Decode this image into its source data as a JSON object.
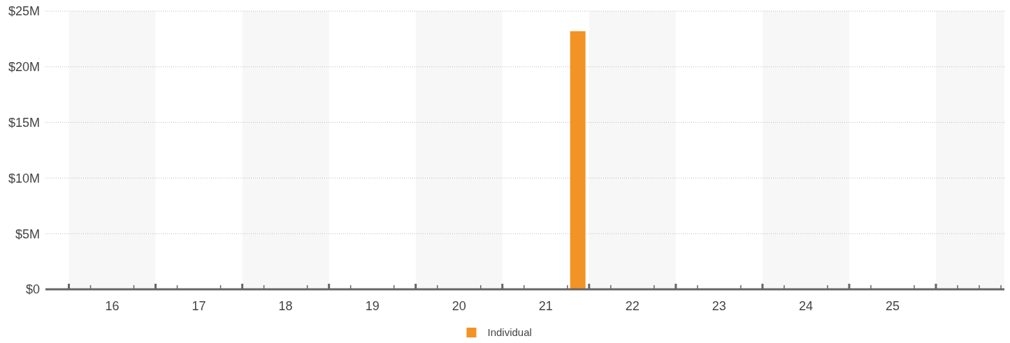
{
  "chart_data": {
    "type": "bar",
    "x": [
      21.87
    ],
    "series": [
      {
        "name": "Individual",
        "color": "#f39325",
        "values": [
          23200000
        ]
      }
    ],
    "xlim": [
      15.73,
      26.79
    ],
    "xticks": [
      {
        "value": 16,
        "label": null
      },
      {
        "value": 16.25,
        "label": null
      },
      {
        "value": 16.5,
        "label": "16"
      },
      {
        "value": 16.75,
        "label": null
      },
      {
        "value": 17,
        "label": null
      },
      {
        "value": 17.25,
        "label": null
      },
      {
        "value": 17.5,
        "label": "17"
      },
      {
        "value": 17.75,
        "label": null
      },
      {
        "value": 18,
        "label": null
      },
      {
        "value": 18.25,
        "label": null
      },
      {
        "value": 18.5,
        "label": "18"
      },
      {
        "value": 18.75,
        "label": null
      },
      {
        "value": 19,
        "label": null
      },
      {
        "value": 19.25,
        "label": null
      },
      {
        "value": 19.5,
        "label": "19"
      },
      {
        "value": 19.75,
        "label": null
      },
      {
        "value": 20,
        "label": null
      },
      {
        "value": 20.25,
        "label": null
      },
      {
        "value": 20.5,
        "label": "20"
      },
      {
        "value": 20.75,
        "label": null
      },
      {
        "value": 21,
        "label": null
      },
      {
        "value": 21.25,
        "label": null
      },
      {
        "value": 21.5,
        "label": "21"
      },
      {
        "value": 21.75,
        "label": null
      },
      {
        "value": 22,
        "label": null
      },
      {
        "value": 22.25,
        "label": null
      },
      {
        "value": 22.5,
        "label": "22"
      },
      {
        "value": 22.75,
        "label": null
      },
      {
        "value": 23,
        "label": null
      },
      {
        "value": 23.25,
        "label": null
      },
      {
        "value": 23.5,
        "label": "23"
      },
      {
        "value": 23.75,
        "label": null
      },
      {
        "value": 24,
        "label": null
      },
      {
        "value": 24.25,
        "label": null
      },
      {
        "value": 24.5,
        "label": "24"
      },
      {
        "value": 24.75,
        "label": null
      },
      {
        "value": 25,
        "label": null
      },
      {
        "value": 25.25,
        "label": null
      },
      {
        "value": 25.5,
        "label": "25"
      },
      {
        "value": 25.75,
        "label": null
      },
      {
        "value": 26,
        "label": null
      },
      {
        "value": 26.25,
        "label": null
      },
      {
        "value": 26.5,
        "label": null
      },
      {
        "value": 26.75,
        "label": null
      }
    ],
    "ylim": [
      0,
      25000000
    ],
    "yticks": [
      {
        "value": 0,
        "label": "$0"
      },
      {
        "value": 5000000,
        "label": "$5M"
      },
      {
        "value": 10000000,
        "label": "$10M"
      },
      {
        "value": 15000000,
        "label": "$15M"
      },
      {
        "value": 20000000,
        "label": "$20M"
      },
      {
        "value": 25000000,
        "label": "$25M"
      }
    ],
    "grid": "y",
    "legend": "bottom",
    "bands": [
      {
        "axis": "x",
        "from": 16,
        "to": 17,
        "color": "#f7f7f7"
      },
      {
        "axis": "x",
        "from": 18,
        "to": 19,
        "color": "#f7f7f7"
      },
      {
        "axis": "x",
        "from": 20,
        "to": 21,
        "color": "#f7f7f7"
      },
      {
        "axis": "x",
        "from": 22,
        "to": 23,
        "color": "#f7f7f7"
      },
      {
        "axis": "x",
        "from": 24,
        "to": 25,
        "color": "#f7f7f7"
      },
      {
        "axis": "x",
        "from": 26,
        "to": 26.79,
        "color": "#f7f7f7"
      }
    ]
  }
}
